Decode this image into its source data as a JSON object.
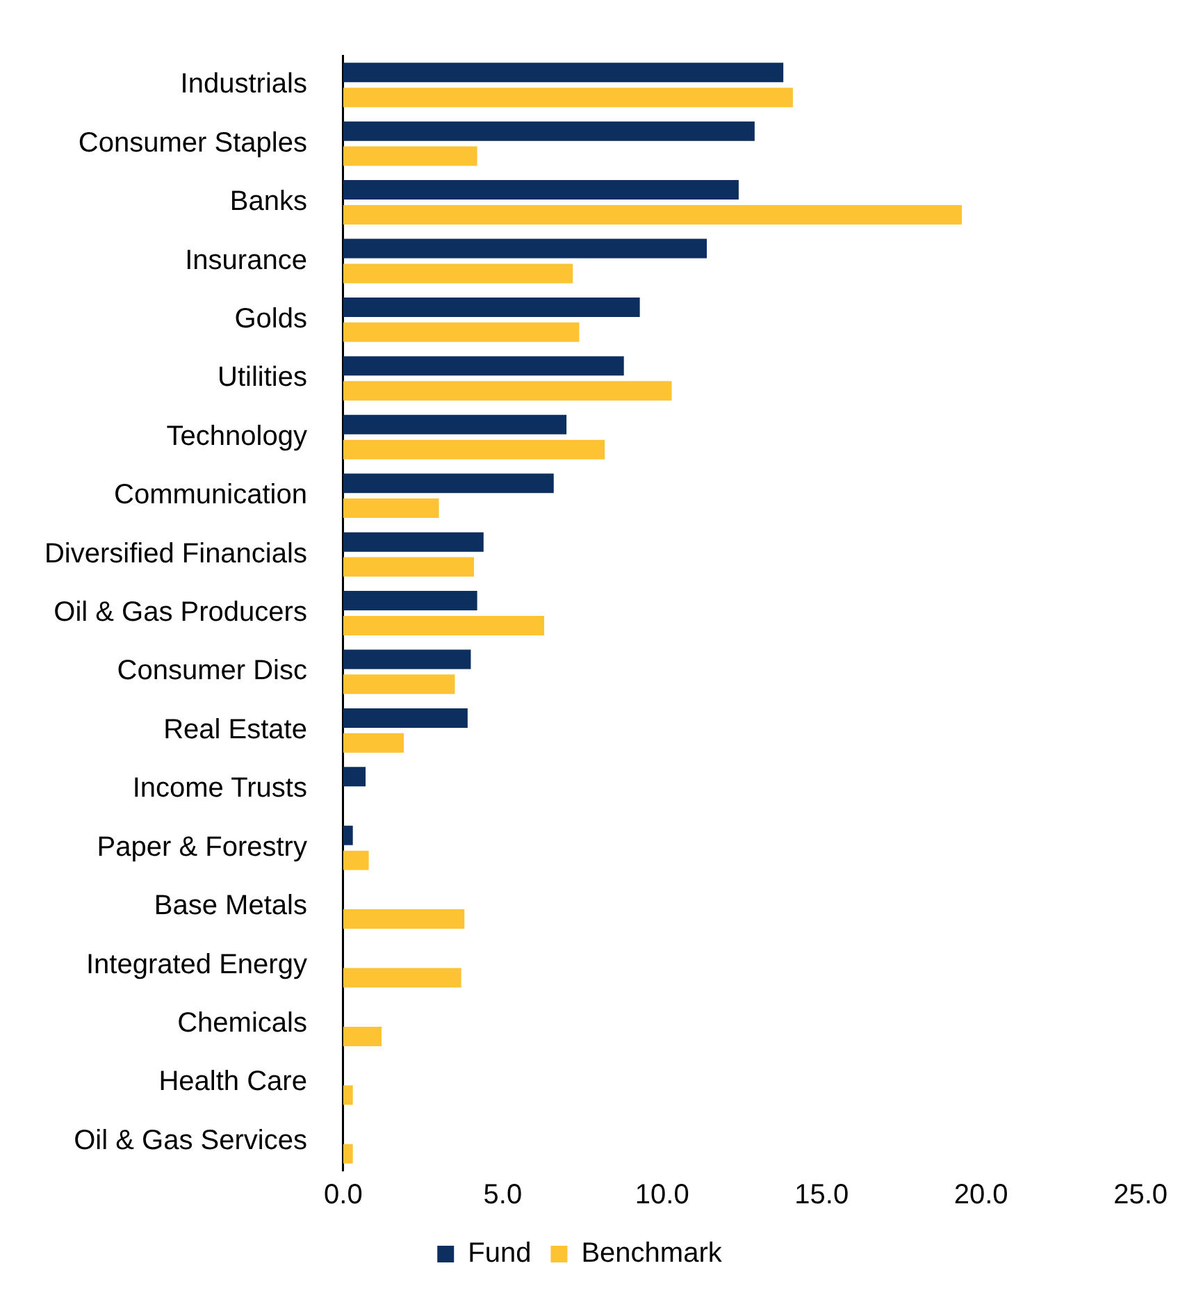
{
  "chart_data": {
    "type": "bar",
    "orientation": "horizontal",
    "categories": [
      "Industrials",
      "Consumer Staples",
      "Banks",
      "Insurance",
      "Golds",
      "Utilities",
      "Technology",
      "Communication",
      "Diversified Financials",
      "Oil & Gas Producers",
      "Consumer Disc",
      "Real Estate",
      "Income Trusts",
      "Paper & Forestry",
      "Base Metals",
      "Integrated Energy",
      "Chemicals",
      "Health Care",
      "Oil & Gas Services"
    ],
    "series": [
      {
        "name": "Fund",
        "color": "#0d2f5f",
        "values": [
          13.8,
          12.9,
          12.4,
          11.4,
          9.3,
          8.8,
          7.0,
          6.6,
          4.4,
          4.2,
          4.0,
          3.9,
          0.7,
          0.3,
          0,
          0,
          0,
          0,
          0
        ]
      },
      {
        "name": "Benchmark",
        "color": "#fdc332",
        "values": [
          14.1,
          4.2,
          19.4,
          7.2,
          7.4,
          10.3,
          8.2,
          3.0,
          4.1,
          6.3,
          3.5,
          1.9,
          0,
          0.8,
          3.8,
          3.7,
          1.2,
          0.3,
          0.3
        ]
      }
    ],
    "xlim": [
      0,
      25
    ],
    "xticks": [
      {
        "value": 0,
        "label": "0.0"
      },
      {
        "value": 5,
        "label": "5.0"
      },
      {
        "value": 10,
        "label": "10.0"
      },
      {
        "value": 15,
        "label": "15.0"
      },
      {
        "value": 20,
        "label": "20.0"
      },
      {
        "value": 25,
        "label": "25.0"
      }
    ],
    "grid": false,
    "legend": "bottom"
  }
}
